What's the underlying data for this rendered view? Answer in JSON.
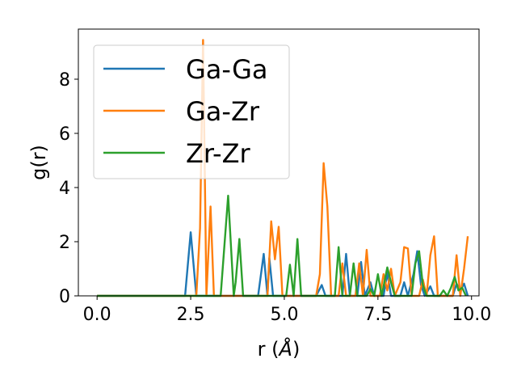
{
  "chart_data": {
    "type": "line",
    "xlabel_main": "r (",
    "xlabel_unit": "Å",
    "xlabel_close": ")",
    "ylabel": "g(r)",
    "xlim": [
      -0.5,
      10.2
    ],
    "ylim": [
      0,
      9.85
    ],
    "xticks": [
      0.0,
      2.5,
      5.0,
      7.5,
      10.0
    ],
    "xtick_labels": [
      "0.0",
      "2.5",
      "5.0",
      "7.5",
      "10.0"
    ],
    "yticks": [
      0,
      2,
      4,
      6,
      8
    ],
    "ytick_labels": [
      "0",
      "2",
      "4",
      "6",
      "8"
    ],
    "grid": false,
    "legend_position": "top-left",
    "series": [
      {
        "name": "Ga-Ga",
        "color": "#1f77b4",
        "points": [
          [
            0,
            0
          ],
          [
            2.35,
            0
          ],
          [
            2.5,
            2.35
          ],
          [
            2.65,
            0
          ],
          [
            4.3,
            0
          ],
          [
            4.45,
            1.55
          ],
          [
            4.55,
            0
          ],
          [
            4.6,
            1.4
          ],
          [
            4.7,
            0
          ],
          [
            5.85,
            0
          ],
          [
            6.0,
            0.4
          ],
          [
            6.1,
            0
          ],
          [
            6.55,
            0
          ],
          [
            6.65,
            1.55
          ],
          [
            6.75,
            0
          ],
          [
            6.95,
            0
          ],
          [
            7.05,
            1.25
          ],
          [
            7.15,
            0
          ],
          [
            7.3,
            0.5
          ],
          [
            7.4,
            0
          ],
          [
            7.65,
            0
          ],
          [
            7.75,
            0.85
          ],
          [
            7.85,
            0
          ],
          [
            8.1,
            0
          ],
          [
            8.2,
            0.5
          ],
          [
            8.3,
            0
          ],
          [
            8.45,
            0.8
          ],
          [
            8.55,
            1.65
          ],
          [
            8.65,
            0.4
          ],
          [
            8.75,
            0
          ],
          [
            8.9,
            0.35
          ],
          [
            9.0,
            0
          ],
          [
            9.5,
            0
          ],
          [
            9.6,
            0.45
          ],
          [
            9.7,
            0.2
          ],
          [
            9.8,
            0.45
          ],
          [
            9.9,
            0
          ]
        ]
      },
      {
        "name": "Ga-Zr",
        "color": "#ff7f0e",
        "points": [
          [
            0,
            0
          ],
          [
            2.65,
            0
          ],
          [
            2.75,
            2.5
          ],
          [
            2.83,
            9.45
          ],
          [
            2.92,
            0
          ],
          [
            3.03,
            3.3
          ],
          [
            3.12,
            0
          ],
          [
            4.55,
            0
          ],
          [
            4.65,
            2.75
          ],
          [
            4.75,
            1.35
          ],
          [
            4.85,
            2.55
          ],
          [
            4.95,
            0
          ],
          [
            5.85,
            0
          ],
          [
            5.95,
            0.8
          ],
          [
            6.05,
            4.9
          ],
          [
            6.15,
            3.3
          ],
          [
            6.25,
            0
          ],
          [
            6.45,
            0
          ],
          [
            6.55,
            1.2
          ],
          [
            6.65,
            0
          ],
          [
            6.9,
            0
          ],
          [
            7.0,
            1.2
          ],
          [
            7.1,
            0
          ],
          [
            7.2,
            1.7
          ],
          [
            7.3,
            0
          ],
          [
            7.55,
            0
          ],
          [
            7.65,
            0.8
          ],
          [
            7.75,
            0.2
          ],
          [
            7.85,
            1.0
          ],
          [
            7.95,
            0
          ],
          [
            8.1,
            0.5
          ],
          [
            8.2,
            1.8
          ],
          [
            8.3,
            1.75
          ],
          [
            8.4,
            0
          ],
          [
            8.6,
            0
          ],
          [
            8.7,
            0.6
          ],
          [
            8.8,
            0
          ],
          [
            8.9,
            1.5
          ],
          [
            9.0,
            2.2
          ],
          [
            9.1,
            0
          ],
          [
            9.5,
            0
          ],
          [
            9.6,
            1.5
          ],
          [
            9.7,
            0
          ],
          [
            9.8,
            1.0
          ],
          [
            9.9,
            2.2
          ]
        ]
      },
      {
        "name": "Zr-Zr",
        "color": "#2ca02c",
        "points": [
          [
            0,
            0
          ],
          [
            3.3,
            0
          ],
          [
            3.5,
            3.7
          ],
          [
            3.65,
            0
          ],
          [
            3.7,
            0.5
          ],
          [
            3.8,
            2.1
          ],
          [
            3.9,
            0
          ],
          [
            5.05,
            0
          ],
          [
            5.15,
            1.15
          ],
          [
            5.25,
            0
          ],
          [
            5.35,
            2.1
          ],
          [
            5.45,
            0
          ],
          [
            6.35,
            0
          ],
          [
            6.45,
            1.8
          ],
          [
            6.55,
            0
          ],
          [
            6.75,
            0
          ],
          [
            6.85,
            1.2
          ],
          [
            6.95,
            0
          ],
          [
            7.2,
            0
          ],
          [
            7.3,
            0.25
          ],
          [
            7.4,
            0
          ],
          [
            7.5,
            0.8
          ],
          [
            7.6,
            0
          ],
          [
            7.75,
            1.05
          ],
          [
            7.85,
            0.5
          ],
          [
            7.95,
            0
          ],
          [
            8.4,
            0
          ],
          [
            8.5,
            1.2
          ],
          [
            8.6,
            1.65
          ],
          [
            8.7,
            0.4
          ],
          [
            8.8,
            0
          ],
          [
            9.15,
            0
          ],
          [
            9.25,
            0.2
          ],
          [
            9.35,
            0
          ],
          [
            9.45,
            0.3
          ],
          [
            9.55,
            0.7
          ],
          [
            9.65,
            0.2
          ],
          [
            9.75,
            0.3
          ],
          [
            9.85,
            0
          ]
        ]
      }
    ]
  }
}
